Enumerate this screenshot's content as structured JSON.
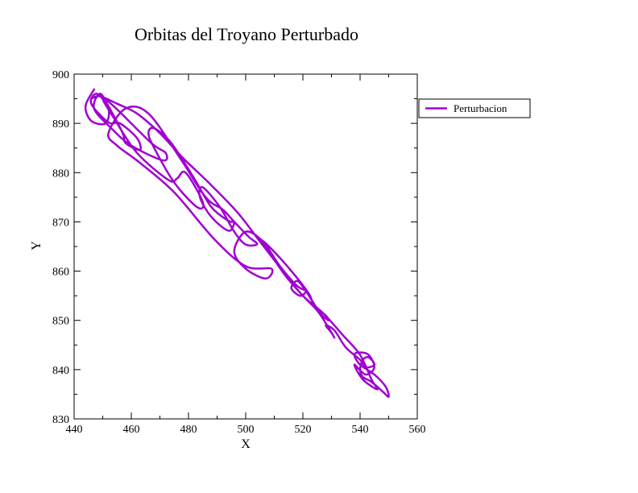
{
  "chart_data": {
    "type": "line",
    "title": "Orbitas del Troyano Perturbado",
    "xlabel": "X",
    "ylabel": "Y",
    "xlim": [
      440,
      560
    ],
    "ylim": [
      830,
      900
    ],
    "xticks": [
      440,
      460,
      480,
      500,
      520,
      540,
      560
    ],
    "yticks": [
      830,
      840,
      850,
      860,
      870,
      880,
      890,
      900
    ],
    "xtick_labels": [
      "440",
      "460",
      "480",
      "500",
      "520",
      "540",
      "560"
    ],
    "ytick_labels": [
      "830",
      "840",
      "850",
      "860",
      "870",
      "880",
      "890",
      "900"
    ],
    "grid": false,
    "legend_position": "right-outside-top",
    "series": [
      {
        "name": "Perturbacion",
        "color": "#a000d0",
        "points": [
          [
            447,
            896.9
          ],
          [
            444,
            893.5
          ],
          [
            446,
            890.5
          ],
          [
            451,
            890
          ],
          [
            452,
            893
          ],
          [
            448,
            896
          ],
          [
            446,
            894
          ],
          [
            452,
            890.2
          ],
          [
            456,
            890
          ],
          [
            462,
            887
          ],
          [
            463,
            884.6
          ],
          [
            458,
            886
          ],
          [
            457,
            888
          ],
          [
            452,
            893.5
          ],
          [
            449,
            896
          ],
          [
            447,
            893
          ],
          [
            453,
            889
          ],
          [
            460,
            885.5
          ],
          [
            471,
            882.5
          ],
          [
            472,
            884
          ],
          [
            467,
            886
          ],
          [
            454,
            893.4
          ],
          [
            450,
            895
          ],
          [
            454,
            891
          ],
          [
            462,
            884
          ],
          [
            473,
            878.5
          ],
          [
            476,
            878.8
          ],
          [
            479,
            880
          ],
          [
            485,
            874
          ],
          [
            483,
            873
          ],
          [
            475,
            878
          ],
          [
            468,
            885
          ],
          [
            466,
            888
          ],
          [
            468,
            889
          ],
          [
            474,
            886
          ],
          [
            482,
            878.8
          ],
          [
            488,
            873
          ],
          [
            494,
            870.2
          ],
          [
            496,
            870
          ],
          [
            494,
            868.2
          ],
          [
            488,
            871
          ],
          [
            484,
            875
          ],
          [
            485,
            877
          ],
          [
            491,
            873
          ],
          [
            496,
            868
          ],
          [
            500,
            865.4
          ],
          [
            504,
            865.5
          ],
          [
            501,
            867
          ],
          [
            496,
            870
          ],
          [
            492,
            872.5
          ],
          [
            486,
            875
          ],
          [
            477,
            883
          ],
          [
            466,
            892
          ],
          [
            458,
            893
          ],
          [
            452,
            888
          ],
          [
            455,
            885.5
          ],
          [
            463,
            882
          ],
          [
            475,
            876
          ],
          [
            489,
            866.5
          ],
          [
            500,
            861
          ],
          [
            509,
            860.5
          ],
          [
            507,
            858.5
          ],
          [
            500,
            860.5
          ],
          [
            496,
            864
          ],
          [
            500,
            868
          ],
          [
            506,
            866
          ],
          [
            512,
            861
          ],
          [
            518,
            857
          ],
          [
            521,
            856
          ],
          [
            519,
            855
          ],
          [
            516,
            856.5
          ],
          [
            518,
            858
          ],
          [
            521,
            856
          ],
          [
            526,
            851.5
          ],
          [
            529,
            850
          ],
          [
            528,
            851
          ],
          [
            524,
            853
          ],
          [
            522,
            855.5
          ],
          [
            516,
            860
          ],
          [
            509,
            864.5
          ],
          [
            505,
            866.5
          ],
          [
            508,
            864
          ],
          [
            514,
            859
          ],
          [
            520,
            855
          ],
          [
            525,
            852
          ],
          [
            529,
            848.5
          ],
          [
            531,
            846.5
          ],
          [
            530,
            847.5
          ],
          [
            528,
            849
          ],
          [
            531,
            848
          ],
          [
            535,
            844.5
          ],
          [
            540,
            842
          ],
          [
            542,
            840.5
          ],
          [
            545,
            841
          ],
          [
            543,
            842.5
          ],
          [
            541,
            842
          ],
          [
            540,
            840
          ],
          [
            541,
            838.5
          ],
          [
            544,
            837.5
          ],
          [
            548,
            835.5
          ],
          [
            550,
            834.5
          ],
          [
            549,
            836.5
          ],
          [
            545,
            839
          ],
          [
            540,
            841
          ],
          [
            538,
            843
          ],
          [
            540,
            843.5
          ],
          [
            543,
            843
          ],
          [
            545,
            840.5
          ],
          [
            542,
            839
          ],
          [
            538,
            841
          ],
          [
            541,
            838
          ],
          [
            546,
            836
          ],
          [
            544,
            838
          ],
          [
            540,
            843
          ],
          [
            534,
            847
          ],
          [
            527,
            851.5
          ],
          [
            520,
            855
          ],
          [
            513,
            860
          ],
          [
            505,
            866
          ],
          [
            497,
            872
          ],
          [
            487,
            878
          ],
          [
            478,
            883
          ],
          [
            470,
            888
          ],
          [
            462,
            892
          ],
          [
            455,
            894
          ],
          [
            449,
            895.5
          ],
          [
            446,
            895
          ]
        ]
      }
    ]
  }
}
